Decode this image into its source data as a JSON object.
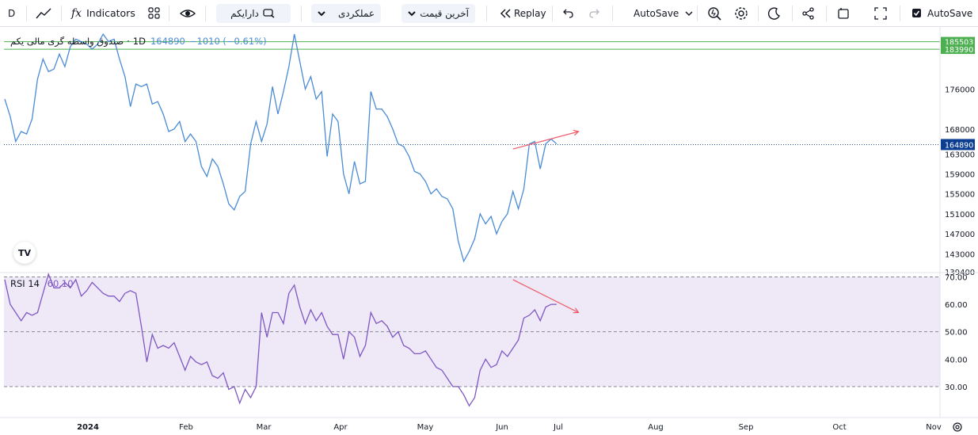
{
  "toolbar": {
    "interval": "D",
    "indicators_label": "Indicators",
    "fx_label": "fx",
    "search_label": "دارایکم",
    "chart_type_label": "عملکردی",
    "price_type_label": "آخرین قیمت",
    "replay_label": "Replay",
    "autosave_dropdown_label": "AutoSave",
    "autosave_checkbox_label": "AutoSave",
    "icons": [
      "line-chart-icon",
      "fx-icon",
      "templates-icon",
      "eye-icon",
      "search-icon",
      "chevron-down-icon",
      "replay-icon",
      "undo-icon",
      "redo-icon",
      "alert-icon",
      "gear-icon",
      "moon-icon",
      "share-icon",
      "snapshot-icon",
      "fullscreen-icon",
      "checkbox-icon"
    ]
  },
  "legend": {
    "symbol": "صندوق واسطه گری مالی یکم",
    "separator": "·",
    "interval": "1D",
    "price": "164890",
    "change": "−1010 (−0.61%)"
  },
  "rsi_legend": {
    "name": "RSI 14",
    "value": "60.10"
  },
  "logo": "TV",
  "colors": {
    "price_line": "#4a8bd6",
    "rsi_line": "#7e57c2",
    "rsi_band": "#ede7f6",
    "annotation": "#f05a6a",
    "hline": "#4caf50",
    "last_price_label": "#0b3d91",
    "hline_label": "#4caf50"
  },
  "chart_data": [
    {
      "type": "line",
      "title": "",
      "series": [
        {
          "name": "",
          "values": [
            174000,
            170500,
            165500,
            167500,
            167000,
            170000,
            178000,
            182000,
            179500,
            180000,
            183000,
            180500,
            184500,
            186000,
            185500,
            185000,
            184000,
            185000,
            187000,
            185500,
            186000,
            182000,
            178500,
            172500,
            177000,
            176500,
            177000,
            173000,
            173500,
            171000,
            167500,
            168000,
            169500,
            165500,
            167000,
            165500,
            160500,
            158500,
            162000,
            160500,
            157000,
            153000,
            151800,
            154500,
            155500,
            165000,
            169500,
            165500,
            169000,
            176500,
            171000,
            175500,
            180500,
            187000,
            181500,
            176000,
            178500,
            174000,
            175500,
            162500,
            171000,
            169500,
            159000,
            155000,
            161500,
            157000,
            157500,
            175500,
            172000,
            172000,
            170500,
            168000,
            165000,
            164500,
            162500,
            159500,
            159000,
            157500,
            155000,
            156000,
            154500,
            154000,
            152000,
            145500,
            141500,
            143500,
            146000,
            151000,
            149000,
            150500,
            147000,
            149500,
            151000,
            155500,
            152000,
            156000,
            165000,
            165500,
            160000,
            165000,
            166000,
            165000
          ]
        }
      ],
      "x": [
        1,
        2,
        3,
        4,
        5,
        6,
        7,
        8,
        9,
        10,
        11,
        12,
        13,
        14,
        15,
        16,
        17,
        18,
        19,
        20,
        21,
        22,
        23,
        24,
        25,
        26,
        27,
        28,
        29,
        30,
        31,
        32,
        33,
        34,
        35,
        36,
        37,
        38,
        39,
        40,
        41,
        42,
        43,
        44,
        45,
        46,
        47,
        48,
        49,
        50,
        51,
        52,
        53,
        54,
        55,
        56,
        57,
        58,
        59,
        60,
        61,
        62,
        63,
        64,
        65,
        66,
        67,
        68,
        69,
        70,
        71,
        72,
        73,
        74,
        75,
        76,
        77,
        78,
        79,
        80,
        81,
        82,
        83,
        84,
        85,
        86,
        87,
        88,
        89,
        90,
        91,
        92,
        93,
        94,
        95,
        96,
        97,
        98,
        99,
        100,
        101,
        102
      ],
      "ylim": [
        139400,
        187500
      ],
      "y_ticks": [
        "176000",
        "168000",
        "163000",
        "159000",
        "155000",
        "151000",
        "147000",
        "143000",
        "139400"
      ],
      "x_tick_labels": [
        "2024",
        "Feb",
        "Mar",
        "Apr",
        "May",
        "Jun",
        "Jul",
        "Aug",
        "Sep",
        "Oct",
        "Nov"
      ],
      "horizontal_lines": [
        {
          "value": 185503,
          "label": "185503"
        },
        {
          "value": 183990,
          "label": "183990"
        }
      ],
      "last_price": {
        "value": 164890,
        "label": "164890"
      },
      "annotation": {
        "type": "trend-arrow",
        "from": [
          94,
          164000
        ],
        "to": [
          106,
          167500
        ]
      }
    },
    {
      "type": "line",
      "title": "",
      "series": [
        {
          "name": "",
          "values": [
            69,
            60,
            57,
            54,
            57,
            56,
            57,
            64,
            71,
            66,
            66,
            68,
            66,
            69,
            63,
            65,
            68,
            66,
            64,
            63,
            63,
            61,
            64,
            65,
            64,
            52,
            39,
            49,
            44,
            45,
            44,
            46,
            41,
            36,
            41,
            39,
            38,
            39,
            34,
            33,
            35,
            29,
            30,
            24,
            29,
            26,
            30,
            57,
            48,
            57,
            57,
            53,
            64,
            67,
            59,
            53,
            58,
            54,
            57,
            52,
            49,
            49,
            40,
            50,
            48,
            41,
            45,
            57,
            53,
            54,
            52,
            48,
            50,
            45,
            44,
            42,
            42,
            43,
            40,
            37,
            36,
            33,
            30,
            30,
            27,
            23,
            26,
            36,
            40,
            37,
            38,
            43,
            41,
            44,
            47,
            55,
            56,
            58,
            54,
            59,
            60,
            60
          ]
        }
      ],
      "x": [
        1,
        2,
        3,
        4,
        5,
        6,
        7,
        8,
        9,
        10,
        11,
        12,
        13,
        14,
        15,
        16,
        17,
        18,
        19,
        20,
        21,
        22,
        23,
        24,
        25,
        26,
        27,
        28,
        29,
        30,
        31,
        32,
        33,
        34,
        35,
        36,
        37,
        38,
        39,
        40,
        41,
        42,
        43,
        44,
        45,
        46,
        47,
        48,
        49,
        50,
        51,
        52,
        53,
        54,
        55,
        56,
        57,
        58,
        59,
        60,
        61,
        62,
        63,
        64,
        65,
        66,
        67,
        68,
        69,
        70,
        71,
        72,
        73,
        74,
        75,
        76,
        77,
        78,
        79,
        80,
        81,
        82,
        83,
        84,
        85,
        86,
        87,
        88,
        89,
        90,
        91,
        92,
        93,
        94,
        95,
        96,
        97,
        98,
        99,
        100,
        101,
        102
      ],
      "ylim": [
        19,
        71
      ],
      "y_ticks": [
        "70.00",
        "60.00",
        "50.00",
        "40.00",
        "30.00"
      ],
      "levels": [
        70,
        50,
        30
      ],
      "annotation": {
        "type": "trend-arrow",
        "from": [
          94,
          69
        ],
        "to": [
          106,
          57
        ]
      }
    }
  ]
}
